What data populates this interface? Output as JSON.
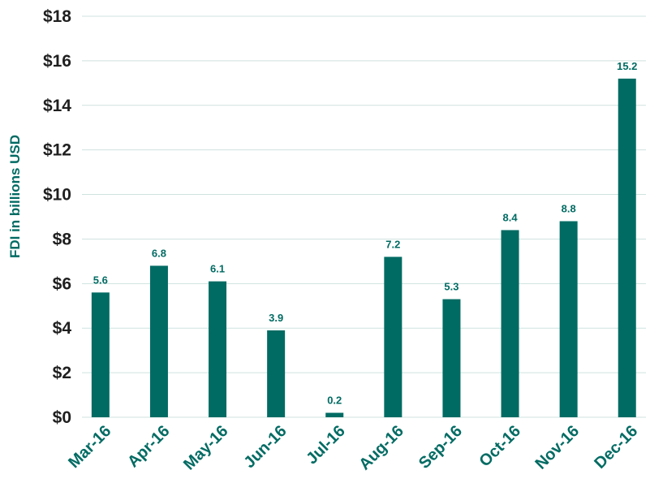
{
  "colors": {
    "bar": "#006b63",
    "grid": "#cfe3df",
    "text": "#1f1f1f",
    "accent": "#006b63"
  },
  "chart_data": {
    "type": "bar",
    "categories": [
      "Mar-16",
      "Apr-16",
      "May-16",
      "Jun-16",
      "Jul-16",
      "Aug-16",
      "Sep-16",
      "Oct-16",
      "Nov-16",
      "Dec-16"
    ],
    "values": [
      5.6,
      6.8,
      6.1,
      3.9,
      0.2,
      7.2,
      5.3,
      8.4,
      8.8,
      15.2
    ],
    "value_labels": [
      "5.6",
      "6.8",
      "6.1",
      "3.9",
      "0.2",
      "7.2",
      "5.3",
      "8.4",
      "8.8",
      "15.2"
    ],
    "ylabel": "FDI in billions USD",
    "ylim": [
      0,
      18
    ],
    "yticks": [
      0,
      2,
      4,
      6,
      8,
      10,
      12,
      14,
      16,
      18
    ],
    "ytick_labels": [
      "$0",
      "$2",
      "$4",
      "$6",
      "$8",
      "$10",
      "$12",
      "$14",
      "$16",
      "$18"
    ],
    "grid": true
  }
}
